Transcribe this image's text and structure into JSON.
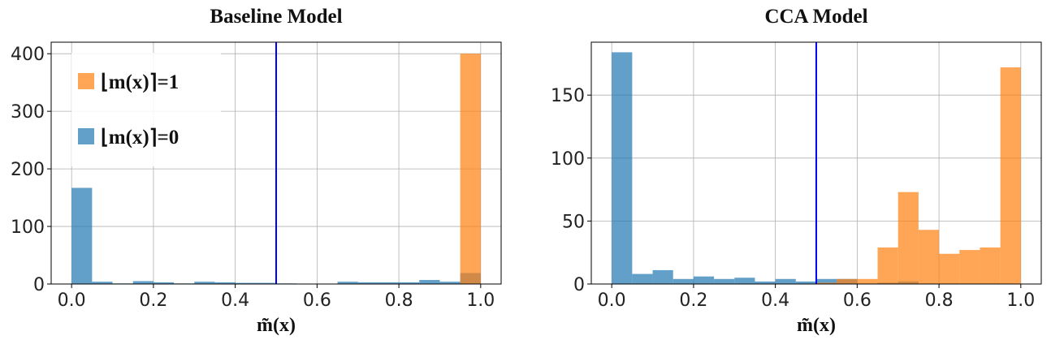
{
  "chart_data": [
    {
      "type": "histogram",
      "title": "Baseline Model",
      "xlabel": "m̃(x)",
      "bins": [
        0,
        0.05,
        0.1,
        0.15,
        0.2,
        0.25,
        0.3,
        0.35,
        0.4,
        0.45,
        0.5,
        0.55,
        0.6,
        0.65,
        0.7,
        0.75,
        0.8,
        0.85,
        0.9,
        0.95,
        1
      ],
      "series": [
        {
          "name": "⌊m(x)⌉=1",
          "color": "#ff7f0e",
          "values": [
            0,
            0,
            0,
            0,
            0,
            0,
            0,
            0,
            0,
            0,
            0,
            0,
            0,
            0,
            0,
            0,
            0,
            0,
            0,
            400
          ]
        },
        {
          "name": "⌊m(x)⌉=0",
          "color": "#1f77b4",
          "values": [
            167,
            4,
            1,
            5,
            3,
            1,
            4,
            3,
            2,
            2,
            1,
            0,
            0,
            4,
            3,
            3,
            3,
            7,
            4,
            19
          ]
        }
      ],
      "alpha": 0.7,
      "vline": 0.5,
      "vline_color": "#0000ff",
      "xlim": [
        -0.05,
        1.05
      ],
      "ylim": [
        0,
        420
      ],
      "xticks": [
        {
          "value": 0,
          "label": "0.0"
        },
        0.2,
        0.4,
        0.6,
        0.8,
        {
          "value": 1,
          "label": "1.0"
        }
      ],
      "yticks": [
        0,
        100,
        200,
        300,
        400
      ],
      "grid": true,
      "legend": "upper left"
    },
    {
      "type": "histogram",
      "title": "CCA Model",
      "xlabel": "m̃(x)",
      "bins": [
        0,
        0.05,
        0.1,
        0.15,
        0.2,
        0.25,
        0.3,
        0.35,
        0.4,
        0.45,
        0.5,
        0.55,
        0.6,
        0.65,
        0.7,
        0.75,
        0.8,
        0.85,
        0.9,
        0.95,
        1
      ],
      "series": [
        {
          "color": "#ff7f0e",
          "values": [
            0,
            0,
            0,
            0,
            0,
            0,
            0,
            0,
            0,
            0,
            1,
            4,
            4,
            29,
            73,
            43,
            24,
            27,
            29,
            172
          ]
        },
        {
          "color": "#1f77b4",
          "values": [
            184,
            8,
            11,
            4,
            6,
            4,
            5,
            2,
            4,
            2,
            4,
            4,
            0,
            1,
            2,
            0,
            0,
            0,
            0,
            0
          ]
        }
      ],
      "alpha": 0.7,
      "vline": 0.5,
      "vline_color": "#0000ff",
      "xlim": [
        -0.05,
        1.05
      ],
      "ylim": [
        0,
        192
      ],
      "xticks": [
        {
          "value": 0,
          "label": "0.0"
        },
        0.2,
        0.4,
        0.6,
        0.8,
        {
          "value": 1,
          "label": "1.0"
        }
      ],
      "yticks": [
        0,
        50,
        100,
        150
      ],
      "grid": true
    }
  ]
}
